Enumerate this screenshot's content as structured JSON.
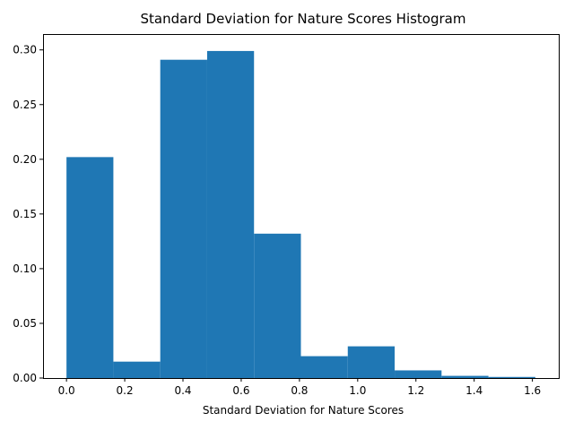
{
  "chart_data": {
    "type": "bar",
    "title": "Standard Deviation for Nature Scores Histogram",
    "xlabel": "Standard Deviation for Nature Scores",
    "ylabel": "",
    "bin_edges": [
      0.0,
      0.161,
      0.322,
      0.483,
      0.644,
      0.805,
      0.966,
      1.127,
      1.288,
      1.449,
      1.61
    ],
    "values": [
      0.202,
      0.015,
      0.291,
      0.299,
      0.132,
      0.02,
      0.029,
      0.007,
      0.002,
      0.001
    ],
    "xlim": [
      -0.0805,
      1.6905
    ],
    "ylim": [
      0,
      0.3145
    ],
    "xticks": [
      0.0,
      0.2,
      0.4,
      0.6,
      0.8,
      1.0,
      1.2,
      1.4,
      1.6
    ],
    "xtick_labels": [
      "0.0",
      "0.2",
      "0.4",
      "0.6",
      "0.8",
      "1.0",
      "1.2",
      "1.4",
      "1.6"
    ],
    "yticks": [
      0.0,
      0.05,
      0.1,
      0.15,
      0.2,
      0.25,
      0.3
    ],
    "ytick_labels": [
      "0.00",
      "0.05",
      "0.10",
      "0.15",
      "0.20",
      "0.25",
      "0.30"
    ],
    "bar_color": "#1f77b4",
    "grid": false,
    "legend": false
  }
}
